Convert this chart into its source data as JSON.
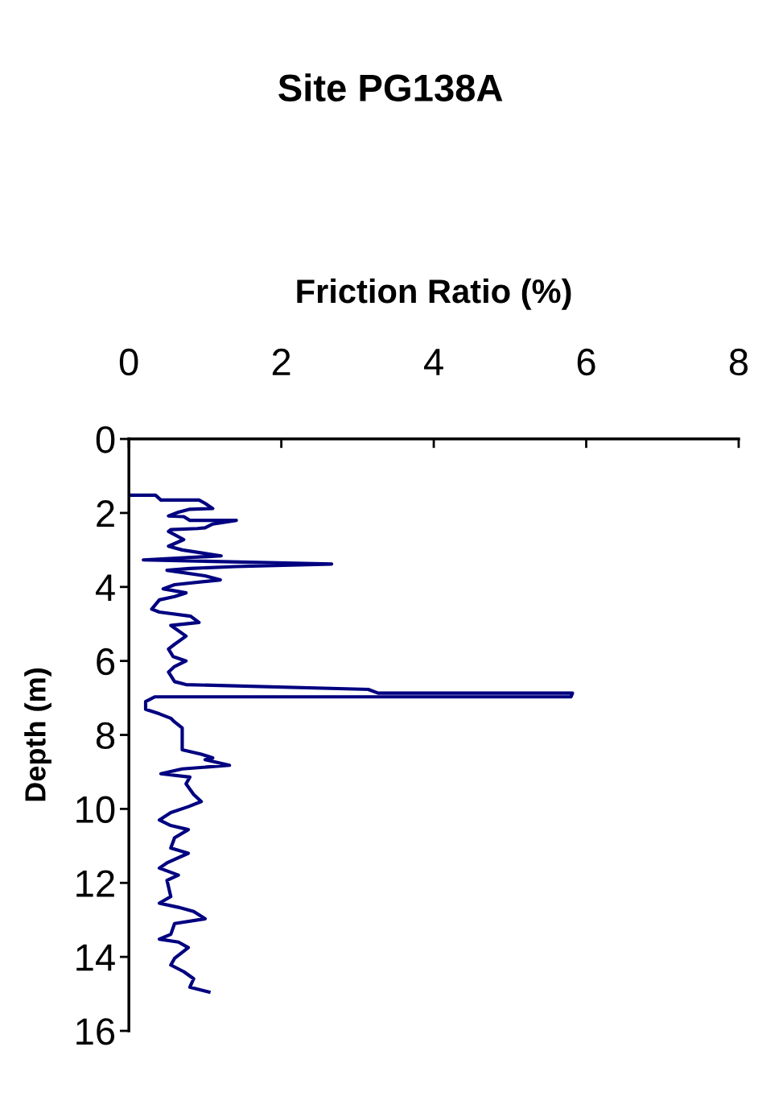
{
  "chart_data": {
    "type": "line",
    "title": "Site PG138A",
    "xlabel": "Friction Ratio (%)",
    "ylabel": "Depth (m)",
    "xlim": [
      0,
      8
    ],
    "xticks": [
      0,
      2,
      4,
      6,
      8
    ],
    "ylim": [
      16,
      0
    ],
    "yticks": [
      0,
      2,
      4,
      6,
      8,
      10,
      12,
      14,
      16
    ],
    "grid": false,
    "legend": false,
    "marker": "none",
    "line_style": "solid",
    "series": [
      {
        "color": "#000080",
        "x": [
          0.02,
          0.35,
          0.42,
          0.92,
          1.0,
          1.1,
          0.8,
          0.65,
          0.52,
          0.72,
          0.8,
          1.41,
          1.1,
          1.0,
          0.9,
          0.55,
          0.52,
          0.72,
          0.52,
          0.7,
          1.21,
          0.19,
          2.66,
          1.4,
          0.8,
          0.5,
          1.0,
          1.2,
          0.6,
          0.45,
          0.75,
          0.6,
          0.4,
          0.3,
          0.4,
          0.81,
          0.92,
          0.55,
          0.75,
          0.6,
          0.52,
          0.58,
          0.75,
          0.6,
          0.52,
          0.6,
          0.75,
          3.14,
          3.27,
          5.82,
          5.8,
          0.34,
          0.22,
          0.22,
          0.4,
          0.55,
          0.6,
          0.7,
          0.7,
          0.95,
          1.1,
          1.0,
          1.32,
          0.7,
          0.42,
          0.8,
          0.75,
          0.85,
          0.95,
          0.78,
          0.55,
          0.4,
          0.55,
          0.78,
          0.6,
          0.55,
          0.78,
          0.5,
          0.4,
          0.65,
          0.5,
          0.55,
          0.4,
          0.65,
          0.85,
          1.0,
          0.6,
          0.55,
          0.4,
          0.65,
          0.78,
          0.6,
          0.55,
          0.72,
          0.85,
          0.8,
          1.05
        ],
        "values": [
          1.52,
          1.52,
          1.65,
          1.65,
          1.74,
          1.88,
          1.9,
          1.98,
          2.08,
          2.1,
          2.2,
          2.2,
          2.3,
          2.4,
          2.42,
          2.45,
          2.5,
          2.72,
          2.9,
          3.0,
          3.16,
          3.27,
          3.38,
          3.45,
          3.5,
          3.55,
          3.7,
          3.81,
          3.94,
          4.05,
          4.16,
          4.26,
          4.35,
          4.6,
          4.68,
          4.79,
          4.96,
          5.04,
          5.33,
          5.55,
          5.68,
          5.88,
          6.0,
          6.15,
          6.3,
          6.56,
          6.64,
          6.77,
          6.87,
          6.87,
          6.97,
          6.97,
          7.1,
          7.31,
          7.43,
          7.55,
          7.65,
          7.81,
          8.4,
          8.52,
          8.62,
          8.67,
          8.82,
          8.92,
          9.05,
          9.14,
          9.32,
          9.61,
          9.8,
          9.94,
          10.1,
          10.3,
          10.45,
          10.56,
          10.78,
          11.06,
          11.2,
          11.46,
          11.6,
          11.79,
          11.93,
          12.37,
          12.55,
          12.66,
          12.77,
          12.97,
          13.1,
          13.39,
          13.52,
          13.6,
          13.75,
          14.04,
          14.22,
          14.4,
          14.59,
          14.82,
          14.95
        ]
      }
    ]
  }
}
